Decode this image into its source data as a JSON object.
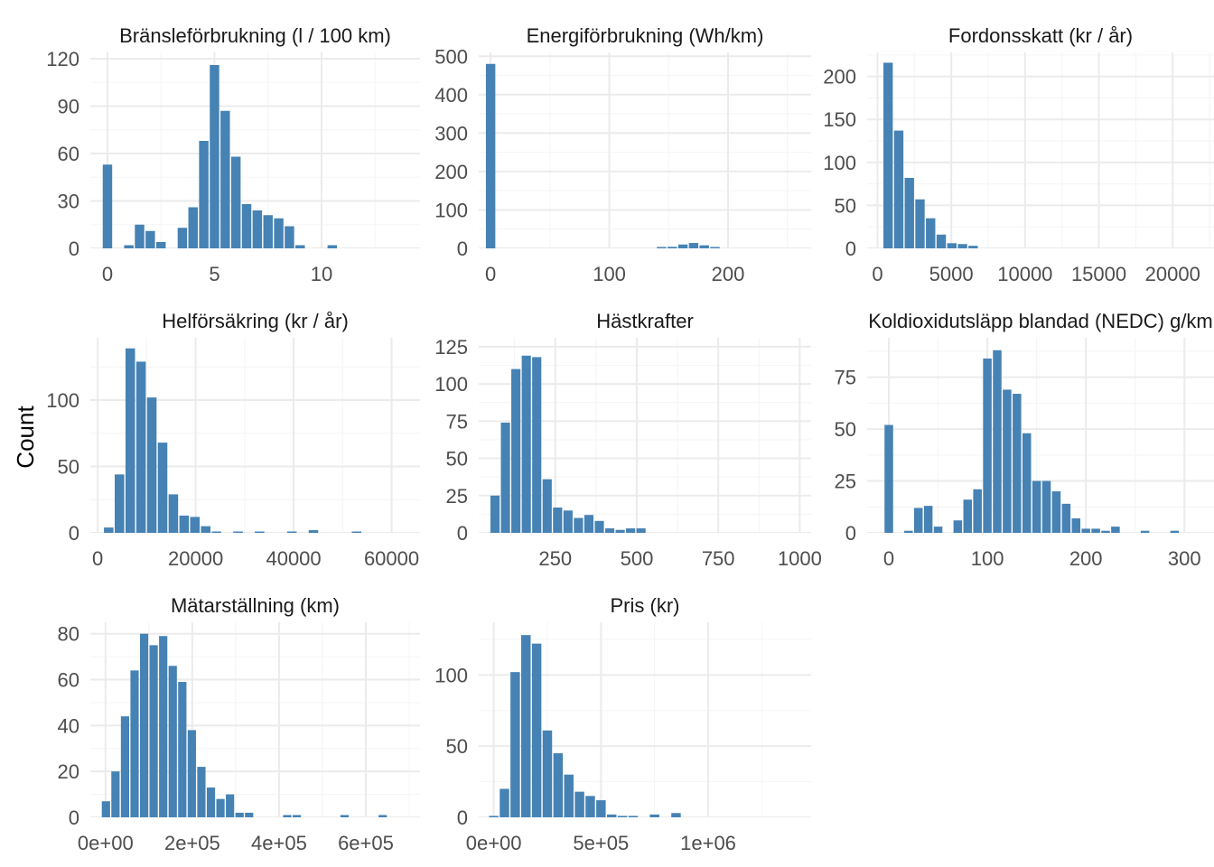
{
  "figure": {
    "ylabel": "Count",
    "bar_color": "#4682B4",
    "grid_major": "#EBEBEB",
    "grid_minor": "#F5F5F5",
    "tick_color": "#4D4D4D",
    "title_color": "#1A1A1A"
  },
  "chart_data": [
    {
      "type": "bar",
      "title": "Bränsleförbrukning (l / 100 km)",
      "xlim": [
        -0.8,
        14.6
      ],
      "ylim": [
        0,
        124
      ],
      "xticks": [
        0,
        5,
        10
      ],
      "xtick_labels": [
        "0",
        "5",
        "10"
      ],
      "yticks": [
        0,
        30,
        60,
        90,
        120
      ],
      "ytick_labels": [
        "0",
        "30",
        "60",
        "90",
        "120"
      ],
      "bin_start": -0.25,
      "bin_width": 0.5,
      "values": [
        53,
        0,
        2,
        15,
        11,
        4,
        0,
        13,
        26,
        68,
        116,
        87,
        58,
        28,
        24,
        21,
        19,
        14,
        2,
        0,
        0,
        2,
        0,
        0,
        0,
        0,
        0,
        0,
        0
      ]
    },
    {
      "type": "bar",
      "title": "Energiförbrukning (Wh/km)",
      "xlim": [
        -10,
        270
      ],
      "ylim": [
        0,
        510
      ],
      "xticks": [
        0,
        100,
        200
      ],
      "xtick_labels": [
        "0",
        "100",
        "200"
      ],
      "yticks": [
        0,
        100,
        200,
        300,
        400,
        500
      ],
      "ytick_labels": [
        "0",
        "100",
        "200",
        "300",
        "400",
        "500"
      ],
      "bin_start": -4.5,
      "bin_width": 9,
      "values": [
        480,
        0,
        0,
        0,
        0,
        0,
        0,
        0,
        0,
        0,
        0,
        0,
        0,
        0,
        0,
        0,
        2,
        4,
        10,
        14,
        8,
        3,
        0,
        0,
        0,
        0,
        0,
        0,
        0
      ]
    },
    {
      "type": "bar",
      "title": "Fordonsskatt (kr / år)",
      "xlim": [
        -700,
        22800
      ],
      "ylim": [
        0,
        228
      ],
      "xticks": [
        0,
        5000,
        10000,
        15000,
        20000
      ],
      "xtick_labels": [
        "0",
        "5000",
        "10000",
        "15000",
        "20000"
      ],
      "yticks": [
        0,
        50,
        100,
        150,
        200
      ],
      "ytick_labels": [
        "0",
        "50",
        "100",
        "150",
        "200"
      ],
      "bin_start": 360,
      "bin_width": 720,
      "values": [
        216,
        137,
        82,
        57,
        35,
        16,
        6,
        5,
        3,
        0,
        0,
        0,
        0,
        0,
        0,
        0,
        0,
        0,
        0,
        0,
        0,
        0,
        0,
        0,
        0,
        0,
        0,
        0,
        0,
        0
      ]
    },
    {
      "type": "bar",
      "title": "Helförsäkring (kr / år)",
      "xlim": [
        -1500,
        65800
      ],
      "ylim": [
        0,
        147
      ],
      "xticks": [
        0,
        20000,
        40000,
        60000
      ],
      "xtick_labels": [
        "0",
        "20000",
        "40000",
        "60000"
      ],
      "yticks": [
        0,
        50,
        100
      ],
      "ytick_labels": [
        "0",
        "50",
        "100"
      ],
      "bin_start": 1150,
      "bin_width": 2200,
      "values": [
        4,
        44,
        139,
        129,
        102,
        68,
        29,
        13,
        12,
        5,
        1,
        0,
        1,
        0,
        1,
        0,
        0,
        1,
        0,
        2,
        0,
        0,
        0,
        1,
        0,
        0,
        0,
        0,
        0,
        0
      ]
    },
    {
      "type": "bar",
      "title": "Hästkrafter",
      "xlim": [
        15,
        1035
      ],
      "ylim": [
        0,
        131
      ],
      "xticks": [
        250,
        500,
        750,
        1000
      ],
      "xtick_labels": [
        "250",
        "500",
        "750",
        "1000"
      ],
      "yticks": [
        0,
        25,
        50,
        75,
        100,
        125
      ],
      "ytick_labels": [
        "0",
        "25",
        "50",
        "75",
        "100",
        "125"
      ],
      "bin_start": 49,
      "bin_width": 32,
      "values": [
        25,
        74,
        110,
        119,
        118,
        36,
        17,
        15,
        10,
        12,
        8,
        3,
        2,
        3,
        3,
        0,
        0,
        0,
        0,
        0,
        0,
        0,
        0,
        0,
        0,
        0,
        0,
        0,
        0,
        0
      ]
    },
    {
      "type": "bar",
      "title": "Koldioxidutsläpp blandad (NEDC) g/km",
      "xlim": [
        -22,
        330
      ],
      "ylim": [
        0,
        94
      ],
      "xticks": [
        0,
        100,
        200,
        300
      ],
      "xtick_labels": [
        "0",
        "100",
        "200",
        "300"
      ],
      "yticks": [
        0,
        25,
        50,
        75
      ],
      "ytick_labels": [
        "0",
        "25",
        "50",
        "75"
      ],
      "bin_start": -5,
      "bin_width": 10,
      "values": [
        52,
        0,
        1,
        12,
        13,
        3,
        0,
        6,
        16,
        21,
        84,
        88,
        69,
        67,
        48,
        25,
        25,
        20,
        14,
        7,
        2,
        2,
        1,
        3,
        0,
        0,
        1,
        0,
        0,
        1
      ]
    },
    {
      "type": "bar",
      "title": "Mätarställning (km)",
      "xlim": [
        -35000,
        725000
      ],
      "ylim": [
        0,
        85
      ],
      "xticks": [
        0,
        200000,
        400000,
        600000
      ],
      "xtick_labels": [
        "0e+00",
        "2e+05",
        "4e+05",
        "6e+05"
      ],
      "yticks": [
        0,
        20,
        40,
        60,
        80
      ],
      "ytick_labels": [
        "0",
        "20",
        "40",
        "60",
        "80"
      ],
      "bin_start": -10000,
      "bin_width": 22000,
      "values": [
        7,
        20,
        44,
        64,
        80,
        75,
        79,
        66,
        59,
        38,
        22,
        13,
        8,
        10,
        2,
        2,
        0,
        0,
        0,
        1,
        1,
        0,
        0,
        0,
        0,
        1,
        0,
        0,
        0,
        1
      ]
    },
    {
      "type": "bar",
      "title": "Pris (kr)",
      "xlim": [
        -70000,
        1480000
      ],
      "ylim": [
        0,
        137
      ],
      "xticks": [
        0,
        500000,
        1000000
      ],
      "xtick_labels": [
        "0e+00",
        "5e+05",
        "1e+06"
      ],
      "yticks": [
        0,
        50,
        100
      ],
      "ytick_labels": [
        "0",
        "50",
        "100"
      ],
      "bin_start": -25000,
      "bin_width": 50000,
      "values": [
        1,
        20,
        102,
        128,
        122,
        61,
        45,
        30,
        18,
        15,
        12,
        2,
        1,
        1,
        0,
        2,
        0,
        3,
        0,
        0,
        0,
        0,
        0,
        0,
        0,
        0,
        0,
        0,
        0,
        0
      ]
    }
  ]
}
